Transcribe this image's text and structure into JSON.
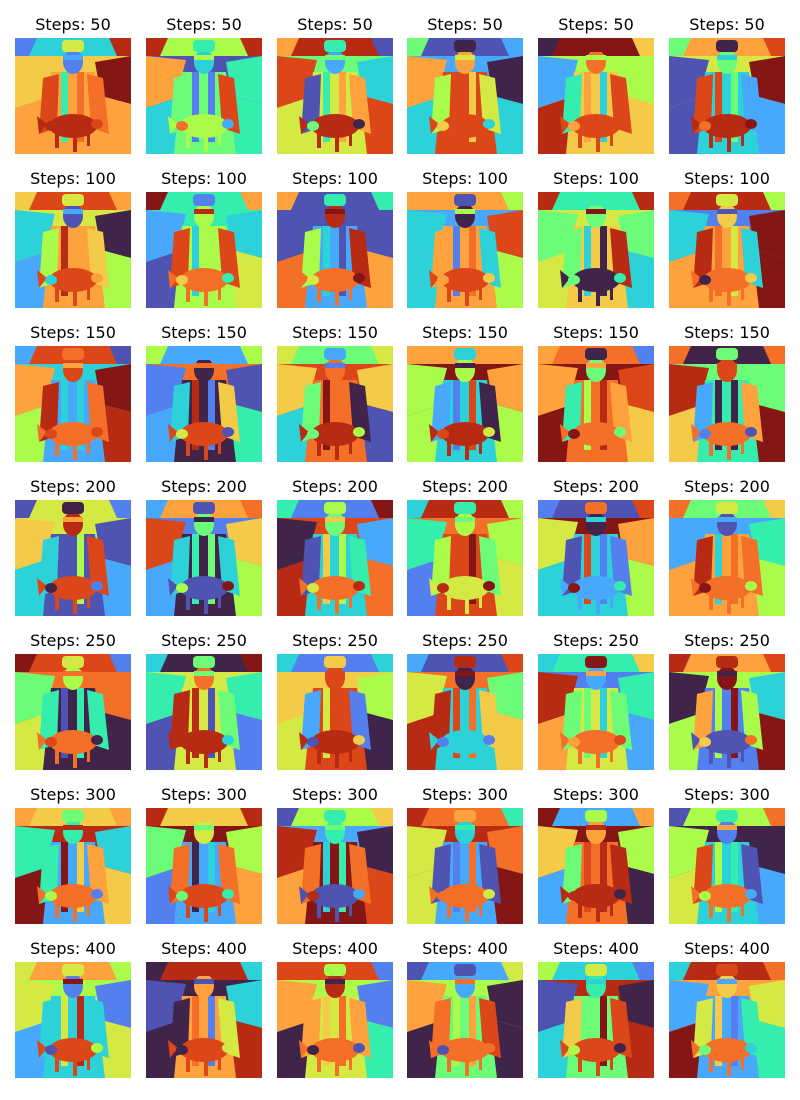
{
  "title_prefix": "Steps: ",
  "rows": [
    {
      "steps": 50,
      "titles": [
        "Steps: 50",
        "Steps: 50",
        "Steps: 50",
        "Steps: 50",
        "Steps: 50",
        "Steps: 50"
      ]
    },
    {
      "steps": 100,
      "titles": [
        "Steps: 100",
        "Steps: 100",
        "Steps: 100",
        "Steps: 100",
        "Steps: 100",
        "Steps: 100"
      ]
    },
    {
      "steps": 150,
      "titles": [
        "Steps: 150",
        "Steps: 150",
        "Steps: 150",
        "Steps: 150",
        "Steps: 150",
        "Steps: 150"
      ]
    },
    {
      "steps": 200,
      "titles": [
        "Steps: 200",
        "Steps: 200",
        "Steps: 200",
        "Steps: 200",
        "Steps: 200",
        "Steps: 200"
      ]
    },
    {
      "steps": 250,
      "titles": [
        "Steps: 250",
        "Steps: 250",
        "Steps: 250",
        "Steps: 250",
        "Steps: 250",
        "Steps: 250"
      ]
    },
    {
      "steps": 300,
      "titles": [
        "Steps: 300",
        "Steps: 300",
        "Steps: 300",
        "Steps: 300",
        "Steps: 300",
        "Steps: 300"
      ]
    },
    {
      "steps": 400,
      "titles": [
        "Steps: 400",
        "Steps: 400",
        "Steps: 400",
        "Steps: 400",
        "Steps: 400",
        "Steps: 400"
      ]
    }
  ],
  "palette": [
    "#30123b",
    "#4145ab",
    "#4675ed",
    "#39a2fc",
    "#1bcfd4",
    "#24eca6",
    "#61fc6c",
    "#a4fc3b",
    "#d1e834",
    "#f3c63a",
    "#fe9b2d",
    "#f36315",
    "#d93806",
    "#b11901",
    "#7a0402"
  ],
  "colors": {
    "background": "#ffffff",
    "title_text": "#000000"
  }
}
